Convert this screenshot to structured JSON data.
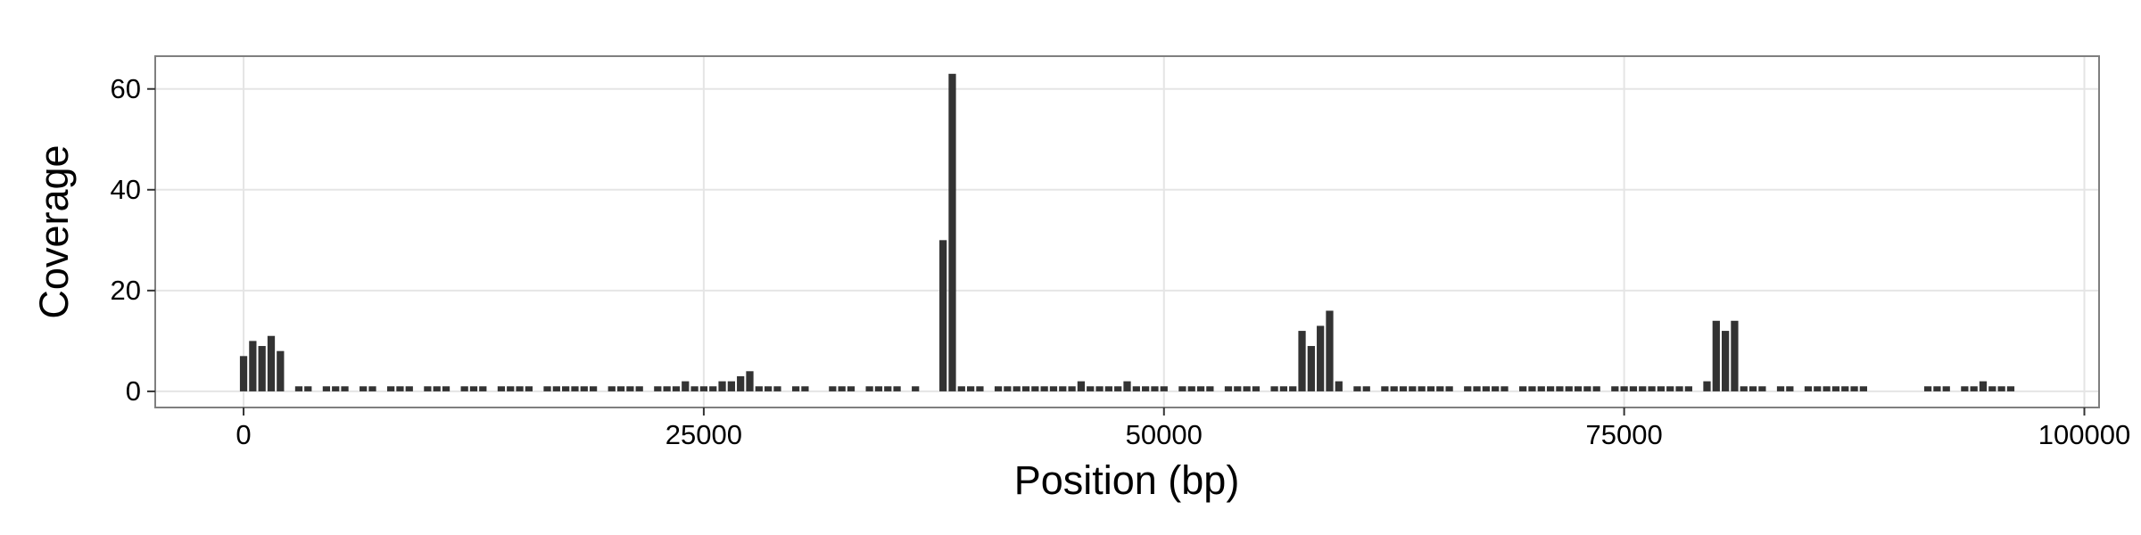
{
  "chart_data": {
    "type": "bar",
    "x_label": "Position (bp)",
    "y_label": "Coverage",
    "x": [
      0,
      500,
      1000,
      1500,
      2000,
      2500,
      3000,
      3500,
      4000,
      4500,
      5000,
      5500,
      6000,
      6500,
      7000,
      7500,
      8000,
      8500,
      9000,
      9500,
      10000,
      10500,
      11000,
      11500,
      12000,
      12500,
      13000,
      13500,
      14000,
      14500,
      15000,
      15500,
      16000,
      16500,
      17000,
      17500,
      18000,
      18500,
      19000,
      19500,
      20000,
      20500,
      21000,
      21500,
      22000,
      22500,
      23000,
      23500,
      24000,
      24500,
      25000,
      25500,
      26000,
      26500,
      27000,
      27500,
      28000,
      28500,
      29000,
      29500,
      30000,
      30500,
      31000,
      31500,
      32000,
      32500,
      33000,
      33500,
      34000,
      34500,
      35000,
      35500,
      36000,
      36500,
      37000,
      37500,
      38000,
      38500,
      39000,
      39500,
      40000,
      40500,
      41000,
      41500,
      42000,
      42500,
      43000,
      43500,
      44000,
      44500,
      45000,
      45500,
      46000,
      46500,
      47000,
      47500,
      48000,
      48500,
      49000,
      49500,
      50000,
      50500,
      51000,
      51500,
      52000,
      52500,
      53000,
      53500,
      54000,
      54500,
      55000,
      55500,
      56000,
      56500,
      57000,
      57500,
      58000,
      58500,
      59000,
      59500,
      60000,
      60500,
      61000,
      61500,
      62000,
      62500,
      63000,
      63500,
      64000,
      64500,
      65000,
      65500,
      66000,
      66500,
      67000,
      67500,
      68000,
      68500,
      69000,
      69500,
      70000,
      70500,
      71000,
      71500,
      72000,
      72500,
      73000,
      73500,
      74000,
      74500,
      75000,
      75500,
      76000,
      76500,
      77000,
      77500,
      78000,
      78500,
      79000,
      79500,
      80000,
      80500,
      81000,
      81500,
      82000,
      82500,
      83000,
      83500,
      84000,
      84500,
      85000,
      85500,
      86000,
      86500,
      87000,
      87500,
      88000,
      88500,
      89000,
      89500,
      90000,
      90500,
      91000,
      91500,
      92000,
      92500,
      93000,
      93500,
      94000,
      94500,
      95000,
      95500,
      96000
    ],
    "values": [
      7,
      10,
      9,
      11,
      8,
      0,
      1,
      1,
      0,
      1,
      1,
      1,
      0,
      1,
      1,
      0,
      1,
      1,
      1,
      0,
      1,
      1,
      1,
      0,
      1,
      1,
      1,
      0,
      1,
      1,
      1,
      1,
      0,
      1,
      1,
      1,
      1,
      1,
      1,
      0,
      1,
      1,
      1,
      1,
      0,
      1,
      1,
      1,
      2,
      1,
      1,
      1,
      2,
      2,
      3,
      4,
      1,
      1,
      1,
      0,
      1,
      1,
      0,
      0,
      1,
      1,
      1,
      0,
      1,
      1,
      1,
      1,
      0,
      1,
      0,
      0,
      30,
      63,
      1,
      1,
      1,
      0,
      1,
      1,
      1,
      1,
      1,
      1,
      1,
      1,
      1,
      2,
      1,
      1,
      1,
      1,
      2,
      1,
      1,
      1,
      1,
      0,
      1,
      1,
      1,
      1,
      0,
      1,
      1,
      1,
      1,
      0,
      1,
      1,
      1,
      12,
      9,
      13,
      16,
      2,
      0,
      1,
      1,
      0,
      1,
      1,
      1,
      1,
      1,
      1,
      1,
      1,
      0,
      1,
      1,
      1,
      1,
      1,
      0,
      1,
      1,
      1,
      1,
      1,
      1,
      1,
      1,
      1,
      0,
      1,
      1,
      1,
      1,
      1,
      1,
      1,
      1,
      1,
      0,
      2,
      14,
      12,
      14,
      1,
      1,
      1,
      0,
      1,
      1,
      0,
      1,
      1,
      1,
      1,
      1,
      1,
      1,
      0,
      0,
      0,
      0,
      0,
      0,
      1,
      1,
      1,
      0,
      1,
      1,
      2,
      1,
      1,
      1
    ],
    "color": "#333333",
    "xlim": [
      -4800,
      100800
    ],
    "xticks": [
      0,
      25000,
      50000,
      75000,
      100000
    ],
    "ylim": [
      -3.2,
      66.5
    ],
    "yticks": [
      0,
      20,
      40,
      60
    ],
    "grid": true
  }
}
